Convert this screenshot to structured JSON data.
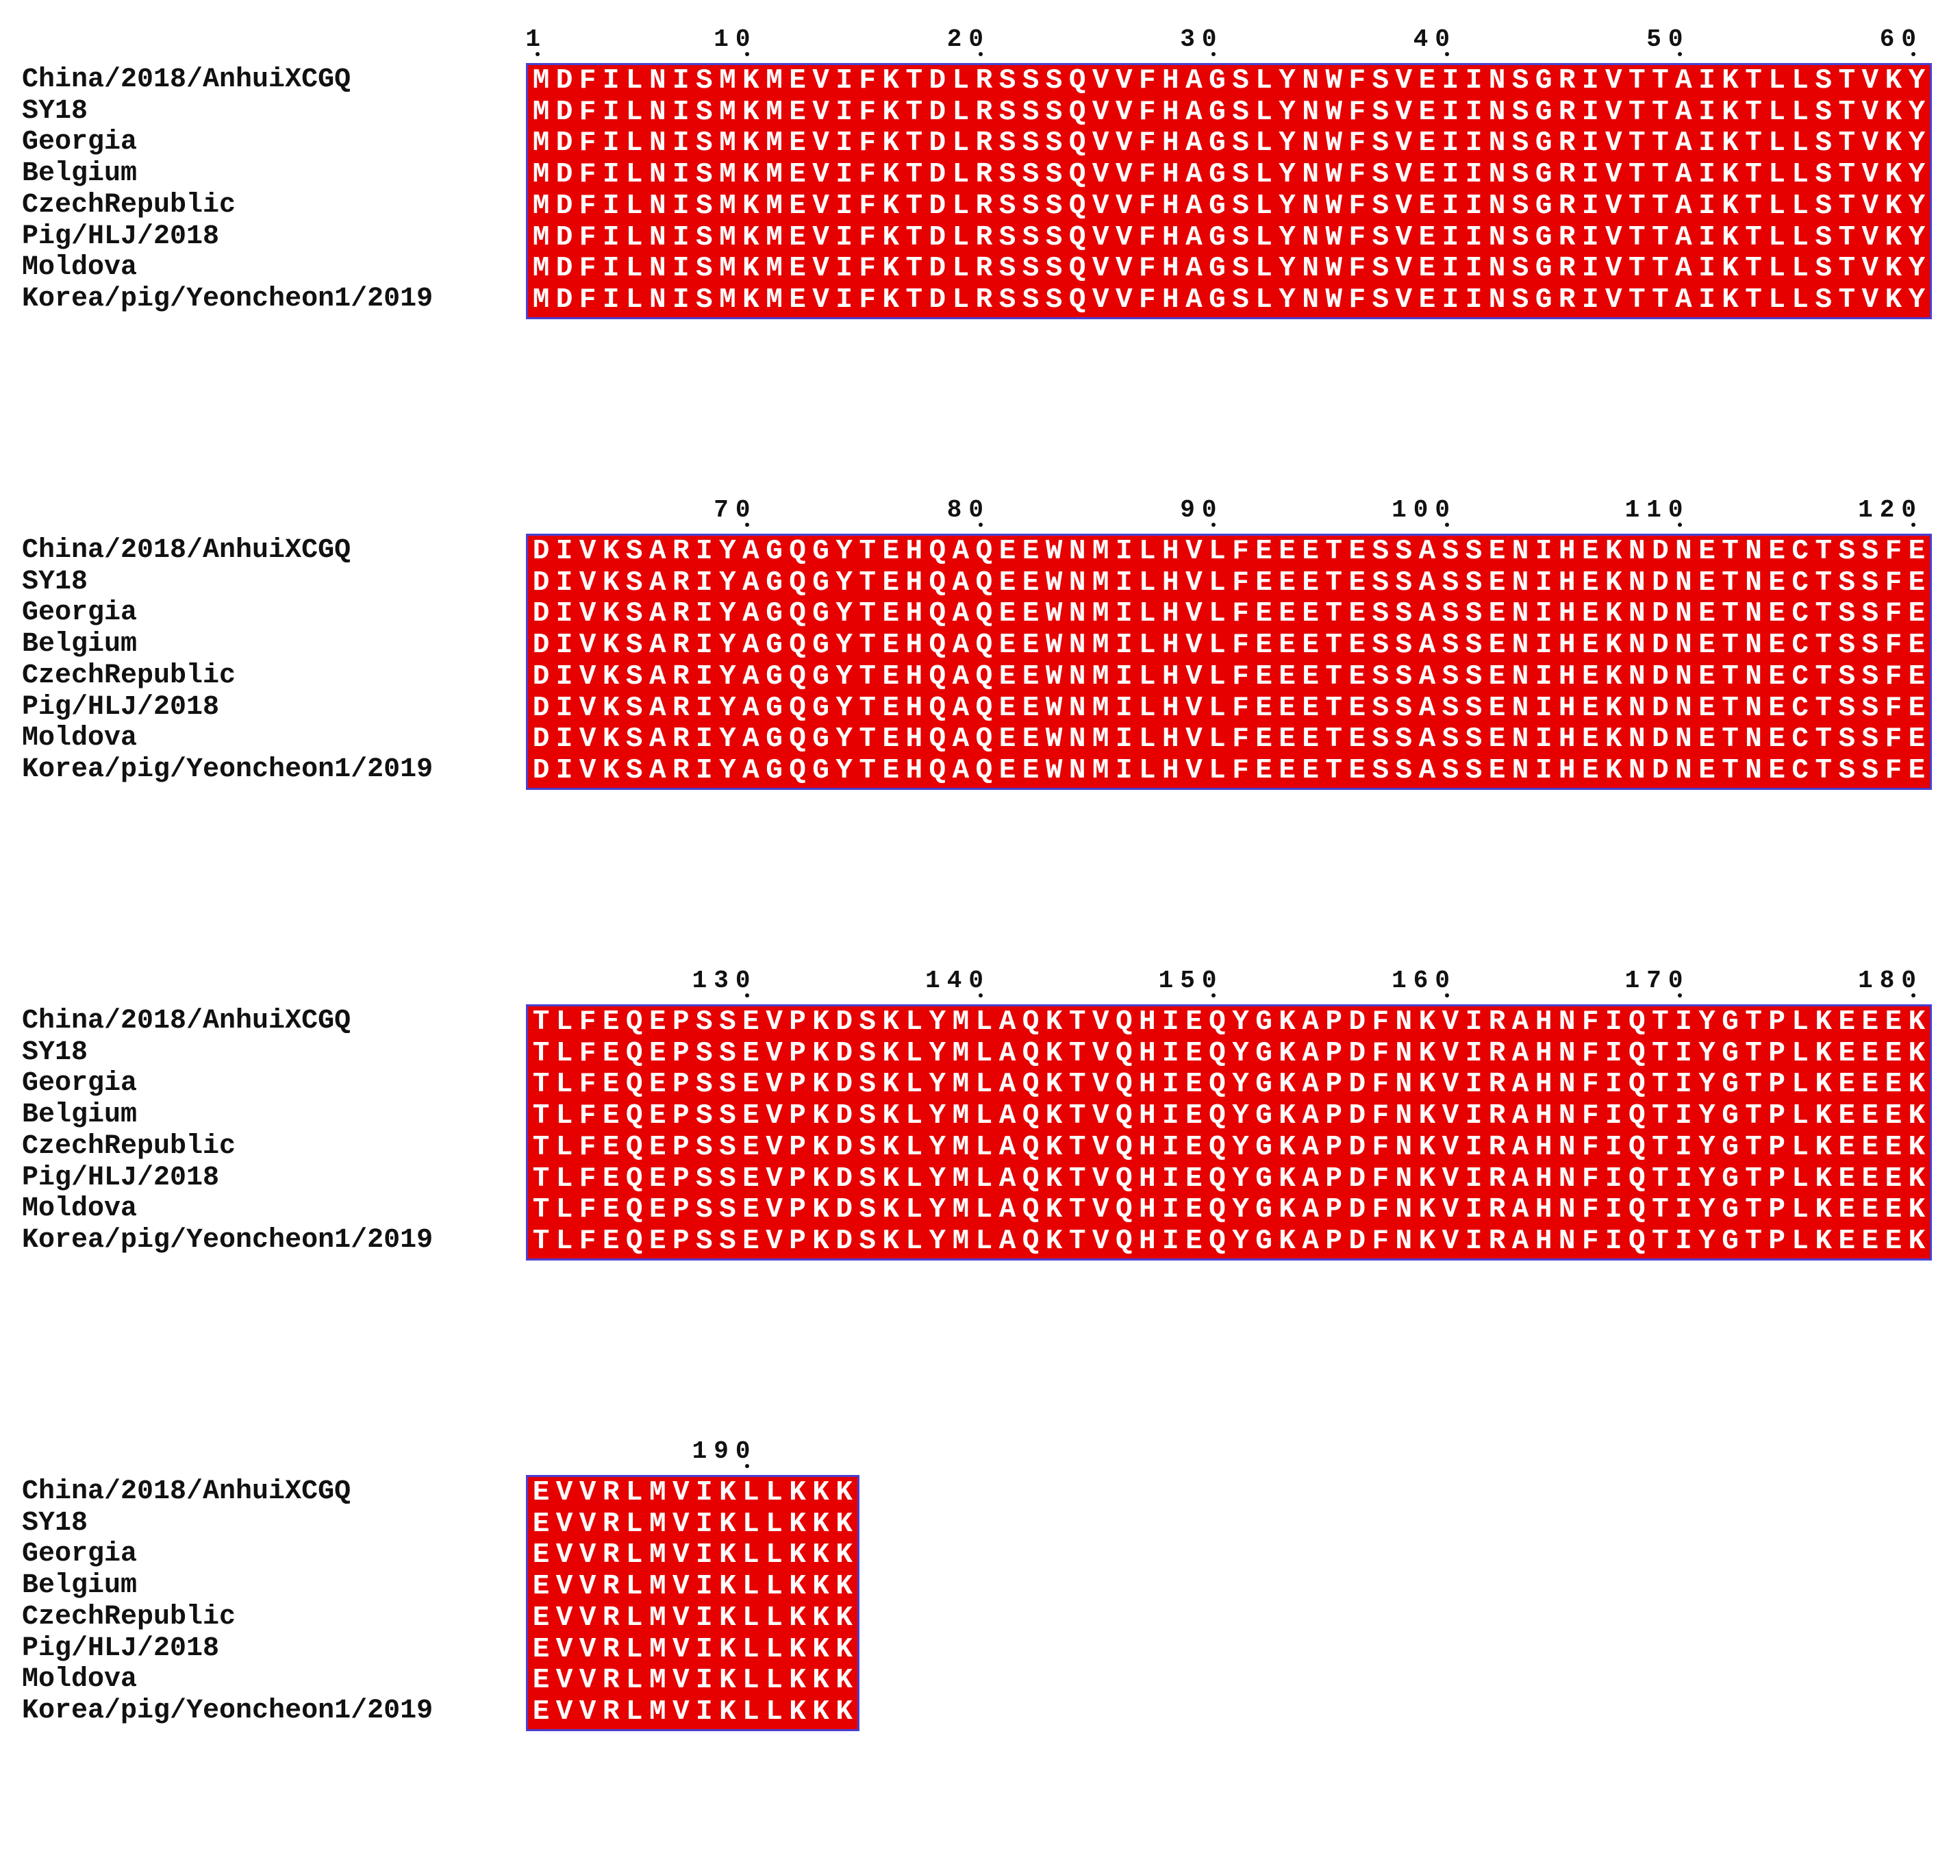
{
  "sequences": [
    "China/2018/AnhuiXCGQ",
    "SY18",
    "Georgia",
    "Belgium",
    "CzechRepublic",
    "Pig/HLJ/2018",
    "Moldova",
    "Korea/pig/Yeoncheon1/2019"
  ],
  "blocks": [
    {
      "start": 1,
      "ticks": [
        "1",
        "10",
        "20",
        "30",
        "40",
        "50",
        "60"
      ],
      "tick_positions": [
        1,
        10,
        20,
        30,
        40,
        50,
        60
      ],
      "residues": "MDFILNISMKMEVIFKTDLRSSSQVVFHAGSLYNWFSVEIINSGRIVTTAIKTLLSTVKY"
    },
    {
      "start": 61,
      "ticks": [
        "70",
        "80",
        "90",
        "100",
        "110",
        "120"
      ],
      "tick_positions": [
        70,
        80,
        90,
        100,
        110,
        120
      ],
      "residues": "DIVKSARIYAGQGYTEHQAQEEWNMILHVLFEEETESSASSENIHEKNDNETNECTSSFE"
    },
    {
      "start": 121,
      "ticks": [
        "130",
        "140",
        "150",
        "160",
        "170",
        "180"
      ],
      "tick_positions": [
        130,
        140,
        150,
        160,
        170,
        180
      ],
      "residues": "TLFEQEPSSEVPKDSKLYMLAQKTVQHIEQYGKAPDFNKVIRAHNFIQTIYGTPLKEEEK"
    },
    {
      "start": 181,
      "ticks": [
        "190"
      ],
      "tick_positions": [
        190
      ],
      "residues": "EVVRLMVIKLLKKK"
    }
  ],
  "colors": {
    "identical_bg": "#e60000",
    "identical_fg": "#ffffff",
    "border": "#4a3fd0"
  }
}
